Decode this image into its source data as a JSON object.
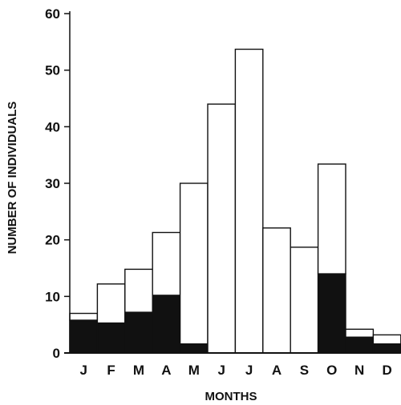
{
  "chart_data": {
    "type": "bar",
    "stacked": true,
    "title": "",
    "xlabel": "MONTHS",
    "ylabel": "NUMBER OF INDIVIDUALS",
    "ylim": [
      0,
      60
    ],
    "yticks": [
      0,
      10,
      20,
      30,
      40,
      50,
      60
    ],
    "categories": [
      "J",
      "F",
      "M",
      "A",
      "M",
      "J",
      "J",
      "A",
      "S",
      "O",
      "N",
      "D"
    ],
    "series": [
      {
        "color": "#111111",
        "values": [
          5.8,
          5.3,
          7.2,
          10.2,
          1.6,
          0,
          0,
          0,
          0,
          14.0,
          2.8,
          1.6
        ]
      },
      {
        "color": "#ffffff",
        "values": [
          1.2,
          6.9,
          7.6,
          11.1,
          28.4,
          44.0,
          53.7,
          22.1,
          18.7,
          19.4,
          1.4,
          1.6
        ]
      }
    ],
    "totals": [
      7.0,
      12.2,
      14.8,
      21.3,
      30.0,
      44.0,
      53.7,
      22.1,
      18.7,
      33.4,
      4.2,
      3.2
    ],
    "grid": false,
    "legend": "none"
  }
}
